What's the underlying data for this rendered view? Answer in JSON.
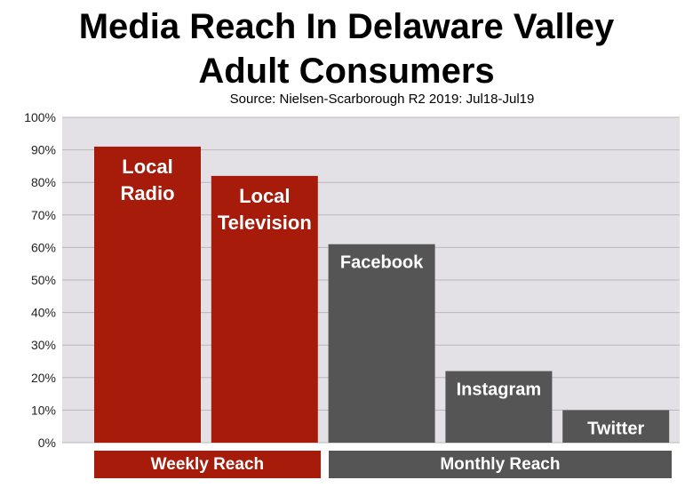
{
  "chart_data": {
    "type": "bar",
    "title": "Media Reach In Delaware Valley Adult Consumers",
    "title_lines": [
      "Media Reach In Delaware Valley",
      "Adult Consumers"
    ],
    "subtitle": "Source: Nielsen-Scarborough R2 2019: Jul18-Jul19",
    "xlabel": "",
    "ylabel": "",
    "ylim": [
      0,
      100
    ],
    "y_ticks": [
      "0%",
      "10%",
      "20%",
      "30%",
      "40%",
      "50%",
      "60%",
      "70%",
      "80%",
      "90%",
      "100%"
    ],
    "grid": true,
    "categories": [
      "Local Radio",
      "Local Television",
      "Facebook",
      "Instagram",
      "Twitter"
    ],
    "category_label_lines": [
      [
        "Local",
        "Radio"
      ],
      [
        "Local",
        "Television"
      ],
      [
        "Facebook"
      ],
      [
        "Instagram"
      ],
      [
        "Twitter"
      ]
    ],
    "values": [
      91,
      82,
      61,
      22,
      10
    ],
    "bar_colors": [
      "#a61b0a",
      "#a61b0a",
      "#555555",
      "#555555",
      "#555555"
    ],
    "groups": [
      {
        "label": "Weekly Reach",
        "categories": [
          "Local Radio",
          "Local Television"
        ],
        "color": "#a61b0a"
      },
      {
        "label": "Monthly Reach",
        "categories": [
          "Facebook",
          "Instagram",
          "Twitter"
        ],
        "color": "#555555"
      }
    ],
    "plot_background": "#e3e1e6"
  }
}
